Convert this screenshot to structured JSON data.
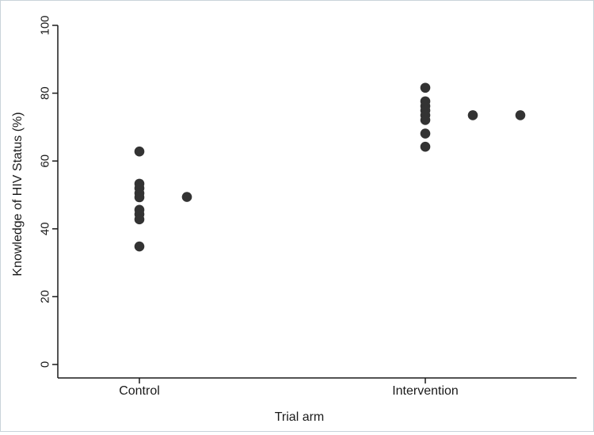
{
  "chart_data": {
    "type": "scatter",
    "xlabel": "Trial arm",
    "ylabel": "Knowledge of HIV Status (%)",
    "ylim": [
      0,
      100
    ],
    "yticks": [
      "0",
      "20",
      "40",
      "60",
      "80",
      "100"
    ],
    "categories": [
      "Control",
      "Intervention"
    ],
    "grid": false,
    "legend": "none",
    "marker_color": "#333333",
    "points": [
      {
        "category": "Control",
        "column": 0,
        "y": 62.8
      },
      {
        "category": "Control",
        "column": 0,
        "y": 53.3
      },
      {
        "category": "Control",
        "column": 0,
        "y": 52.0
      },
      {
        "category": "Control",
        "column": 0,
        "y": 50.5
      },
      {
        "category": "Control",
        "column": 0,
        "y": 49.3
      },
      {
        "category": "Control",
        "column": 0,
        "y": 45.6
      },
      {
        "category": "Control",
        "column": 0,
        "y": 44.3
      },
      {
        "category": "Control",
        "column": 0,
        "y": 42.8
      },
      {
        "category": "Control",
        "column": 0,
        "y": 34.8
      },
      {
        "category": "Control",
        "column": 1,
        "y": 49.4
      },
      {
        "category": "Intervention",
        "column": 0,
        "y": 81.6
      },
      {
        "category": "Intervention",
        "column": 0,
        "y": 77.6
      },
      {
        "category": "Intervention",
        "column": 0,
        "y": 76.2
      },
      {
        "category": "Intervention",
        "column": 0,
        "y": 74.9
      },
      {
        "category": "Intervention",
        "column": 0,
        "y": 73.5
      },
      {
        "category": "Intervention",
        "column": 0,
        "y": 72.1
      },
      {
        "category": "Intervention",
        "column": 0,
        "y": 68.1
      },
      {
        "category": "Intervention",
        "column": 0,
        "y": 64.2
      },
      {
        "category": "Intervention",
        "column": 1,
        "y": 73.5
      },
      {
        "category": "Intervention",
        "column": 2,
        "y": 73.5
      }
    ]
  }
}
